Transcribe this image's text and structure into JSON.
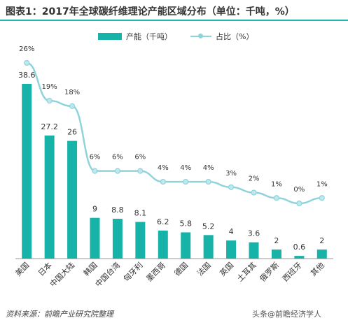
{
  "title": "图表1：2017年全球碳纤维理论产能区域分布（单位：千吨，%）",
  "legend": {
    "bar_label": "产能（千吨）",
    "line_label": "占比（%）"
  },
  "source": "资料来源：前瞻产业研究院整理",
  "watermark": "头条@前瞻经济学人",
  "colors": {
    "bar": "#17b3a9",
    "line": "#8fd3db",
    "marker": "#bfe8ec"
  },
  "chart_data": {
    "type": "bar",
    "categories": [
      "美国",
      "日本",
      "中国大陆",
      "韩国",
      "中国台湾",
      "匈牙利",
      "墨西哥",
      "德国",
      "法国",
      "英国",
      "土耳其",
      "俄罗斯",
      "西班牙",
      "其他"
    ],
    "series": [
      {
        "name": "产能（千吨）",
        "type": "bar",
        "values": [
          38.6,
          27.2,
          26,
          9,
          8.8,
          8.1,
          6.2,
          5.8,
          5.2,
          4,
          3.6,
          2,
          0.6,
          2
        ],
        "labels": [
          "38.6",
          "27.2",
          "26",
          "9",
          "8.8",
          "8.1",
          "6.2",
          "5.8",
          "5.2",
          "4",
          "3.6",
          "2",
          "0.6",
          "2"
        ]
      },
      {
        "name": "占比（%）",
        "type": "line",
        "values": [
          26,
          19,
          18,
          6,
          6,
          6,
          4,
          4,
          4,
          3,
          2,
          1,
          0,
          1
        ],
        "labels": [
          "26%",
          "19%",
          "18%",
          "6%",
          "6%",
          "6%",
          "4%",
          "4%",
          "4%",
          "3%",
          "2%",
          "1%",
          "0%",
          "1%"
        ]
      }
    ],
    "grid": false
  }
}
